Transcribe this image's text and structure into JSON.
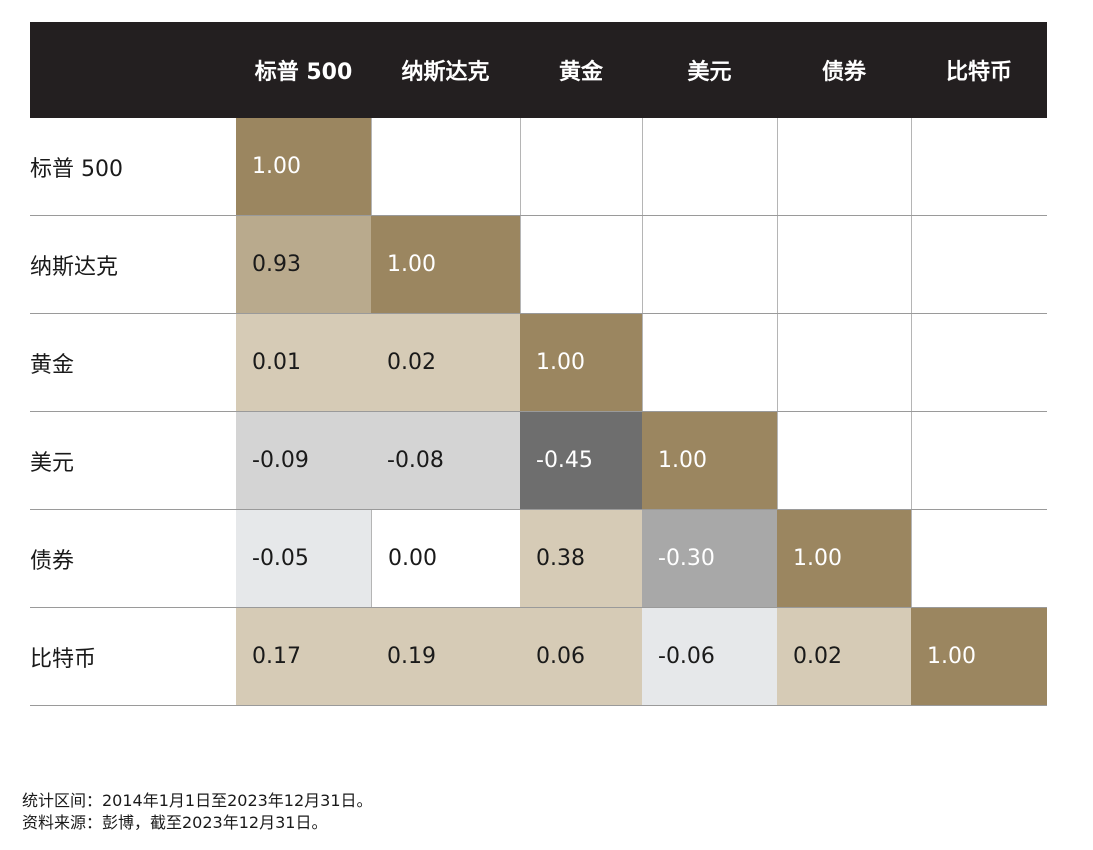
{
  "chart_data": {
    "type": "heatmap",
    "columns": [
      "标普 500",
      "纳斯达克",
      "黄金",
      "美元",
      "债券",
      "比特币"
    ],
    "rows": [
      "标普 500",
      "纳斯达克",
      "黄金",
      "美元",
      "债券",
      "比特币"
    ],
    "values": [
      [
        "1.00",
        "",
        "",
        "",
        "",
        ""
      ],
      [
        "0.93",
        "1.00",
        "",
        "",
        "",
        ""
      ],
      [
        "0.01",
        "0.02",
        "1.00",
        "",
        "",
        ""
      ],
      [
        "-0.09",
        "-0.08",
        "-0.45",
        "1.00",
        "",
        ""
      ],
      [
        "-0.05",
        "0.00",
        "0.38",
        "-0.30",
        "1.00",
        ""
      ],
      [
        "0.17",
        "0.19",
        "0.06",
        "-0.06",
        "0.02",
        "1.00"
      ]
    ],
    "colors": {
      "header_bg": "#231f20",
      "diagonal": "#9b8660",
      "strong_positive": "#b9aa8d",
      "weak_positive": "#d6cbb6",
      "neutral_zero": "#ffffff",
      "weak_negative": "#d4d4d4",
      "very_weak_negative": "#e6e8ea",
      "moderate_negative": "#a8a8a8",
      "strong_negative": "#6e6e6e"
    }
  },
  "notes": {
    "period": "统计区间：2014年1月1日至2023年12月31日。",
    "source": "资料来源：彭博，截至2023年12月31日。"
  }
}
